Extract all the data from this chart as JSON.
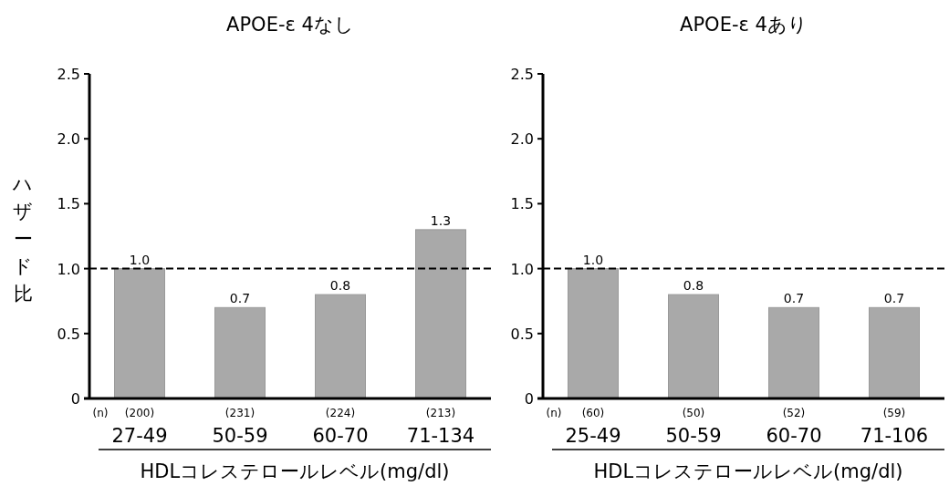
{
  "chart_data": [
    {
      "type": "bar",
      "title": "APOE-ε 4なし",
      "ylabel": "ハザード比",
      "xlabel": "HDLコレステロールレベル(mg/dl)",
      "categories": [
        "27-49",
        "50-59",
        "60-70",
        "71-134"
      ],
      "values": [
        1.0,
        0.7,
        0.8,
        1.3
      ],
      "color": "#a9a9a9",
      "value_labels": [
        "1.0",
        "0.7",
        "0.8",
        "1.3"
      ],
      "ylim": [
        0,
        2.5
      ],
      "yticks": [
        0,
        {
          "value": 0.5,
          "label": "0.5"
        },
        {
          "value": 1,
          "label": "1.0"
        },
        {
          "value": 1.5,
          "label": "1.5"
        },
        {
          "value": 2,
          "label": "2.0"
        },
        {
          "value": 2.5,
          "label": "2.5"
        }
      ],
      "ref_lines": [
        {
          "axis": "y",
          "value": 1,
          "line_style": "dashed",
          "color": "#000000"
        }
      ],
      "annotations": [
        "(n)",
        "(200)",
        "(231)",
        "(224)",
        "(213)"
      ]
    },
    {
      "type": "bar",
      "title": "APOE-ε 4あり",
      "xlabel": "HDLコレステロールレベル(mg/dl)",
      "categories": [
        "25-49",
        "50-59",
        "60-70",
        "71-106"
      ],
      "values": [
        1.0,
        0.8,
        0.7,
        0.7
      ],
      "color": "#a9a9a9",
      "value_labels": [
        "1.0",
        "0.8",
        "0.7",
        "0.7"
      ],
      "ylim": [
        0,
        2.5
      ],
      "yticks": [
        0,
        {
          "value": 0.5,
          "label": "0.5"
        },
        {
          "value": 1,
          "label": "1.0"
        },
        {
          "value": 1.5,
          "label": "1.5"
        },
        {
          "value": 2,
          "label": "2.0"
        },
        {
          "value": 2.5,
          "label": "2.5"
        }
      ],
      "ref_lines": [
        {
          "axis": "y",
          "value": 1,
          "line_style": "dashed",
          "color": "#000000"
        }
      ],
      "annotations": [
        "(n)",
        "(60)",
        "(50)",
        "(52)",
        "(59)"
      ]
    }
  ]
}
